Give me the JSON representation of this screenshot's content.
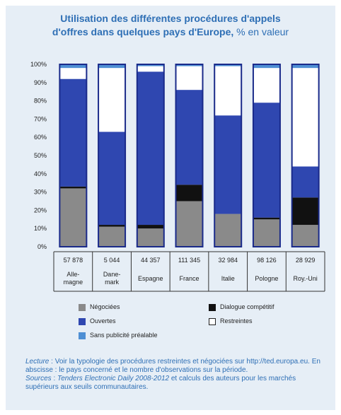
{
  "title_line1": "Utilisation des différentes procédures d'appels",
  "title_line2": "d'offres dans quelques pays d'Europe,",
  "title_unit": "% en valeur",
  "colors": {
    "negociees": "#8a8a8a",
    "dialogue": "#111111",
    "ouvertes": "#2f47b0",
    "restreintes": "#ffffff",
    "sans_publicite": "#4e8fd4",
    "border": "#1a2a8a",
    "panel": "#e6eef6"
  },
  "legend": [
    {
      "key": "negociees",
      "label": "Négociées"
    },
    {
      "key": "dialogue",
      "label": "Dialogue compétitif"
    },
    {
      "key": "ouvertes",
      "label": "Ouvertes"
    },
    {
      "key": "restreintes",
      "label": "Restreintes"
    },
    {
      "key": "sans_publicite",
      "label": "Sans publicité préalable"
    }
  ],
  "chart_data": {
    "type": "bar",
    "stacked": true,
    "ylim": [
      0,
      100
    ],
    "yticks": [
      "0%",
      "10%",
      "20%",
      "30%",
      "40%",
      "50%",
      "60%",
      "70%",
      "80%",
      "90%",
      "100%"
    ],
    "categories": [
      {
        "count": "57 878",
        "name": [
          "Alle-",
          "magne"
        ]
      },
      {
        "count": "5 044",
        "name": [
          "Dane-",
          "mark"
        ]
      },
      {
        "count": "44 357",
        "name": [
          "Espagne"
        ]
      },
      {
        "count": "111 345",
        "name": [
          "France"
        ]
      },
      {
        "count": "32 984",
        "name": [
          "Italie"
        ]
      },
      {
        "count": "98 126",
        "name": [
          "Pologne"
        ]
      },
      {
        "count": "28 929",
        "name": [
          "Roy.-Uni"
        ]
      }
    ],
    "series": [
      {
        "key": "negociees",
        "name": "Négociées",
        "values": [
          32,
          11,
          10,
          25,
          18,
          15,
          12
        ]
      },
      {
        "key": "dialogue",
        "name": "Dialogue compétitif",
        "values": [
          1,
          1,
          2,
          9,
          0,
          1,
          15
        ]
      },
      {
        "key": "ouvertes",
        "name": "Ouvertes",
        "values": [
          59,
          51,
          84,
          52,
          54,
          63,
          17
        ]
      },
      {
        "key": "restreintes",
        "name": "Restreintes",
        "values": [
          6,
          35,
          3,
          13,
          27,
          19,
          54
        ]
      },
      {
        "key": "sans_publicite",
        "name": "Sans publicité préalable",
        "values": [
          2,
          2,
          1,
          1,
          1,
          2,
          2
        ]
      }
    ]
  },
  "footnote": {
    "lecture_label": "Lecture",
    "lecture_text": " : Voir la typologie des procédures restreintes et négociées sur http://ted.europa.eu. En abscisse : le pays concerné et le nombre d'observations sur la période.",
    "sources_label": "Sources",
    "sources_source": "Tenders Electronic Daily 2008-2012",
    "sources_text": " et calculs des auteurs pour les marchés supérieurs aux seuils communautaires."
  }
}
